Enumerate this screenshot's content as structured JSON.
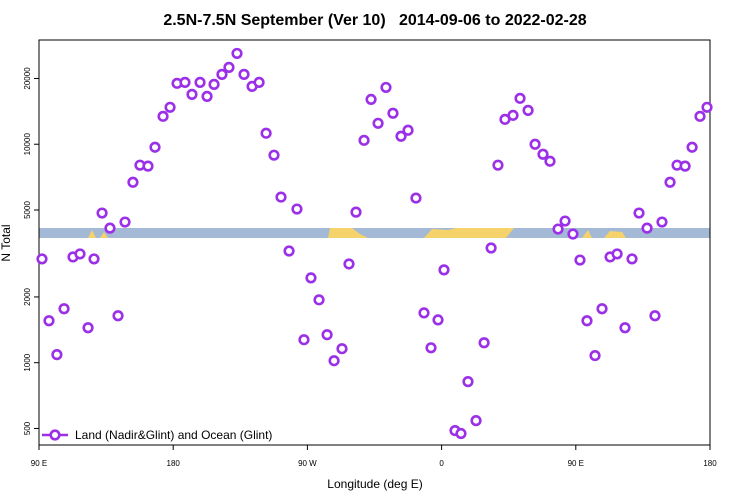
{
  "chart_data": {
    "type": "scatter",
    "title": "2.5N-7.5N September (Ver 10)   2014-09-06 to 2022-02-28",
    "x_label": "Longitude (deg E)",
    "y_label": "N Total",
    "y_log": true,
    "xlim": [
      90,
      540
    ],
    "ylim": [
      420,
      30000
    ],
    "xticks": [
      {
        "value": 90,
        "label": "90 E"
      },
      {
        "value": 180,
        "label": "180"
      },
      {
        "value": 270,
        "label": "90 W"
      },
      {
        "value": 360,
        "label": "0"
      },
      {
        "value": 450,
        "label": "90 E"
      },
      {
        "value": 540,
        "label": "180"
      }
    ],
    "yticks": [
      500,
      1000,
      2000,
      5000,
      10000,
      20000
    ],
    "legend": "bottom-left",
    "series": [
      {
        "name": "Land (Nadir&Glint) and Ocean (Glint)",
        "color": "#9b30e8",
        "x": [
          92,
          96.7,
          102,
          106.8,
          112.8,
          117.5,
          122.9,
          126.9,
          132.3,
          137.6,
          143,
          147.7,
          153,
          157.7,
          163.1,
          167.8,
          173.2,
          177.9,
          182.6,
          187.9,
          192.6,
          198,
          202.7,
          207.4,
          212.7,
          217.4,
          222.8,
          227.5,
          232.9,
          237.6,
          242.3,
          247.6,
          252.3,
          257.7,
          263,
          267.7,
          272.4,
          277.8,
          283.2,
          287.9,
          293.2,
          297.9,
          302.6,
          308,
          312.7,
          317.4,
          322.7,
          327.4,
          332.8,
          337.5,
          342.8,
          348.2,
          352.9,
          357.6,
          361.6,
          369,
          373,
          377.7,
          383.1,
          388.5,
          393.2,
          397.8,
          402.5,
          407.9,
          412.6,
          418,
          422.7,
          428,
          432.7,
          438.1,
          442.8,
          448.1,
          452.8,
          457.5,
          462.9,
          467.6,
          473,
          477.7,
          483,
          487.7,
          492.4,
          497.8,
          503.1,
          507.8,
          513.2,
          517.9,
          523.3,
          528,
          533.3,
          538
        ],
        "values": [
          2985,
          1556,
          1089,
          1766,
          3048,
          3147,
          1445,
          2985,
          4842,
          4130,
          1640,
          4404,
          6700,
          8020,
          7940,
          9690,
          13420,
          14760,
          19000,
          19190,
          16910,
          19190,
          16560,
          18790,
          20880,
          22480,
          26040,
          20880,
          18400,
          19190,
          11230,
          8910,
          5730,
          3245,
          5050,
          1274,
          2444,
          1940,
          1343,
          1021,
          1159,
          2831,
          4890,
          10420,
          16040,
          12470,
          18200,
          13860,
          10880,
          11590,
          5670,
          1690,
          1170,
          1570,
          2660,
          489,
          474,
          819,
          543,
          1234,
          3350,
          8020,
          13000,
          13560,
          16220,
          14290,
          10000,
          9000,
          8360,
          4090,
          4450,
          3880,
          2950,
          1556,
          1078,
          1766,
          3048,
          3147,
          1445,
          2985,
          4842,
          4130,
          1640,
          4404,
          6700,
          8020,
          7940,
          9690,
          13420,
          14760
        ]
      }
    ]
  }
}
